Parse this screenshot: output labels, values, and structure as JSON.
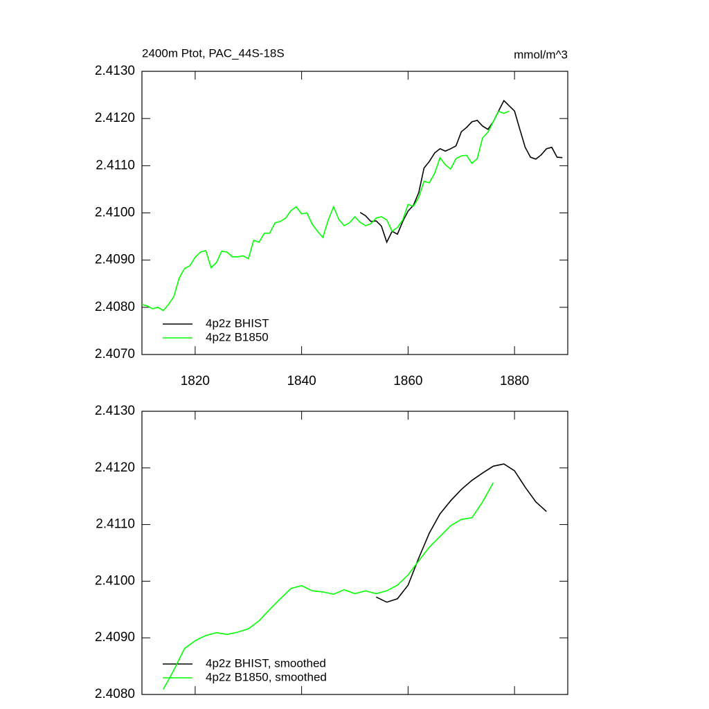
{
  "chart_data": [
    {
      "type": "line",
      "title": "2400m Ptot, PAC_44S-18S",
      "subtitle": "mmol/m^3",
      "xlim": [
        1810,
        1890
      ],
      "xticks": [
        1820,
        1840,
        1860,
        1880
      ],
      "ylim": [
        2.407,
        2.413
      ],
      "yticks": [
        {
          "value": 2.407,
          "label": "2.4070"
        },
        {
          "value": 2.408,
          "label": "2.4080"
        },
        {
          "value": 2.409,
          "label": "2.4090"
        },
        {
          "value": 2.41,
          "label": "2.4100"
        },
        {
          "value": 2.411,
          "label": "2.4110"
        },
        {
          "value": 2.412,
          "label": "2.4120"
        },
        {
          "value": 2.413,
          "label": "2.4130"
        }
      ],
      "legend": "lower-left",
      "series": [
        {
          "name": "4p2z BHIST",
          "color": "#000000",
          "x": [
            1851,
            1852,
            1853,
            1854,
            1855,
            1856,
            1857,
            1858,
            1859,
            1860,
            1861,
            1862,
            1863,
            1864,
            1865,
            1866,
            1867,
            1868,
            1869,
            1870,
            1871,
            1872,
            1873,
            1874,
            1875,
            1876,
            1877,
            1878,
            1879,
            1880,
            1881,
            1882,
            1883,
            1884,
            1885,
            1886,
            1887,
            1888,
            1889
          ],
          "values": [
            2.41001,
            2.40994,
            2.40982,
            2.40983,
            2.40972,
            2.40938,
            2.40961,
            2.40955,
            2.40982,
            2.41004,
            2.41016,
            2.41043,
            2.41095,
            2.41109,
            2.41127,
            2.41136,
            2.41131,
            2.41136,
            2.41142,
            2.41172,
            2.41181,
            2.41193,
            2.41196,
            2.41184,
            2.41177,
            2.41193,
            2.41216,
            2.41238,
            2.41227,
            2.41216,
            2.41177,
            2.41139,
            2.41118,
            2.41114,
            2.41123,
            2.41136,
            2.41139,
            2.41118,
            2.41117
          ]
        },
        {
          "name": "4p2z B1850",
          "color": "#00ff00",
          "x": [
            1810,
            1811,
            1812,
            1813,
            1814,
            1815,
            1816,
            1817,
            1818,
            1819,
            1820,
            1821,
            1822,
            1823,
            1824,
            1825,
            1826,
            1827,
            1828,
            1829,
            1830,
            1831,
            1832,
            1833,
            1834,
            1835,
            1836,
            1837,
            1838,
            1839,
            1840,
            1841,
            1842,
            1843,
            1844,
            1845,
            1846,
            1847,
            1848,
            1849,
            1850,
            1851,
            1852,
            1853,
            1854,
            1855,
            1856,
            1857,
            1858,
            1859,
            1860,
            1861,
            1862,
            1863,
            1864,
            1865,
            1866,
            1867,
            1868,
            1869,
            1870,
            1871,
            1872,
            1873,
            1874,
            1875,
            1876,
            1877,
            1878,
            1879
          ],
          "values": [
            2.40806,
            2.40803,
            2.40797,
            2.408,
            2.40793,
            2.40806,
            2.40823,
            2.40862,
            2.40882,
            2.40888,
            2.40906,
            2.40917,
            2.4092,
            2.40884,
            2.40895,
            2.40919,
            2.40917,
            2.40907,
            2.40907,
            2.40909,
            2.40903,
            2.40942,
            2.40938,
            2.40957,
            2.40957,
            2.40979,
            2.40982,
            2.40989,
            2.41005,
            2.41013,
            2.40998,
            2.41,
            2.40976,
            2.40961,
            2.40948,
            2.40985,
            2.41013,
            2.40986,
            2.40973,
            2.40979,
            2.40992,
            2.4098,
            2.40973,
            2.40977,
            2.40989,
            2.40992,
            2.40985,
            2.40961,
            2.40969,
            2.40985,
            2.41018,
            2.41014,
            2.41033,
            2.41067,
            2.41064,
            2.41084,
            2.41117,
            2.41102,
            2.41093,
            2.41115,
            2.41121,
            2.41122,
            2.41105,
            2.41115,
            2.41159,
            2.41171,
            2.41193,
            2.41215,
            2.41211,
            2.41216
          ]
        }
      ]
    },
    {
      "type": "line",
      "xlim": [
        1810,
        1890
      ],
      "xticks": [
        1820,
        1840,
        1860,
        1880
      ],
      "ylim": [
        2.408,
        2.413
      ],
      "yticks": [
        {
          "value": 2.408,
          "label": "2.4080"
        },
        {
          "value": 2.409,
          "label": "2.4090"
        },
        {
          "value": 2.41,
          "label": "2.4100"
        },
        {
          "value": 2.411,
          "label": "2.4110"
        },
        {
          "value": 2.412,
          "label": "2.4120"
        },
        {
          "value": 2.413,
          "label": "2.4130"
        }
      ],
      "legend": "lower-left",
      "series": [
        {
          "name": "4p2z BHIST, smoothed",
          "color": "#000000",
          "x": [
            1854,
            1856,
            1858,
            1860,
            1862,
            1864,
            1866,
            1868,
            1870,
            1872,
            1874,
            1876,
            1878,
            1880,
            1882,
            1884,
            1886
          ],
          "values": [
            2.40972,
            2.40963,
            2.40969,
            2.40993,
            2.41041,
            2.41085,
            2.41119,
            2.41142,
            2.41162,
            2.41178,
            2.41191,
            2.41203,
            2.41207,
            2.41195,
            2.41166,
            2.4114,
            2.41123
          ]
        },
        {
          "name": "4p2z B1850, smoothed",
          "color": "#00ff00",
          "x": [
            1814,
            1816,
            1818,
            1820,
            1822,
            1824,
            1826,
            1828,
            1830,
            1832,
            1834,
            1836,
            1838,
            1840,
            1842,
            1844,
            1846,
            1848,
            1850,
            1852,
            1854,
            1856,
            1858,
            1860,
            1862,
            1864,
            1866,
            1868,
            1870,
            1872,
            1874,
            1876
          ],
          "values": [
            2.40809,
            2.40843,
            2.40881,
            2.40895,
            2.40904,
            2.40909,
            2.40906,
            2.4091,
            2.40916,
            2.4093,
            2.4095,
            2.40969,
            2.40987,
            2.40992,
            2.40983,
            2.40981,
            2.40977,
            2.40985,
            2.40978,
            2.40983,
            2.40978,
            2.40983,
            2.40993,
            2.41011,
            2.41036,
            2.4106,
            2.41079,
            2.41098,
            2.41109,
            2.41112,
            2.4114,
            2.41174
          ]
        }
      ]
    }
  ]
}
